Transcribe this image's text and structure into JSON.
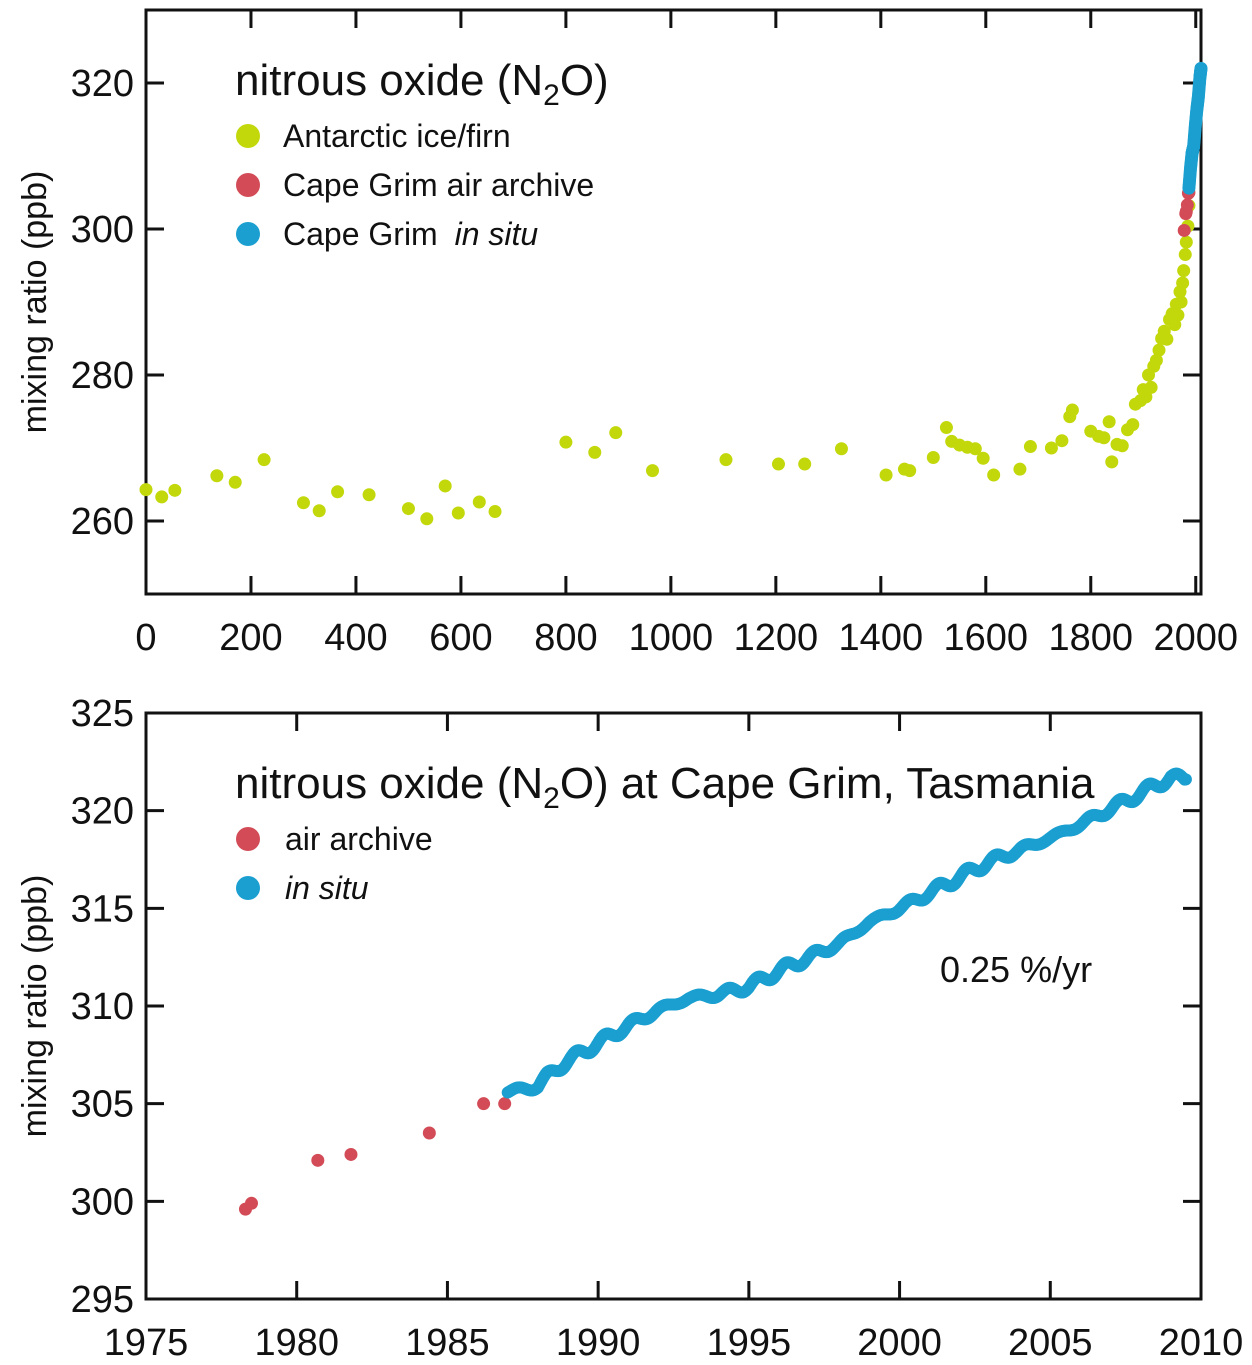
{
  "colors": {
    "ice": "#c2d80b",
    "archive": "#d24b57",
    "insitu": "#1a9fd0",
    "axis": "#111111"
  },
  "chart_data": [
    {
      "type": "scatter",
      "title": "nitrous oxide (N2O)",
      "title_main": "nitrous oxide (N",
      "title_sub": "2",
      "title_tail": "O)",
      "ylabel": "mixing ratio (ppb)",
      "xlim": [
        0,
        2010
      ],
      "ylim": [
        250,
        330
      ],
      "xticks": [
        0,
        200,
        400,
        600,
        800,
        1000,
        1200,
        1400,
        1600,
        1800,
        2000
      ],
      "yticks": [
        260,
        280,
        300,
        320
      ],
      "grid": false,
      "legend_position": "top-left",
      "series": [
        {
          "name": "Antarctic ice/firn",
          "color": "#c2d80b",
          "points": [
            [
              0,
              264.3
            ],
            [
              30,
              263.3
            ],
            [
              55,
              264.2
            ],
            [
              135,
              266.2
            ],
            [
              170,
              265.3
            ],
            [
              225,
              268.4
            ],
            [
              300,
              262.5
            ],
            [
              330,
              261.4
            ],
            [
              365,
              264.0
            ],
            [
              425,
              263.6
            ],
            [
              500,
              261.7
            ],
            [
              535,
              260.3
            ],
            [
              570,
              264.8
            ],
            [
              595,
              261.1
            ],
            [
              635,
              262.6
            ],
            [
              665,
              261.3
            ],
            [
              800,
              270.8
            ],
            [
              855,
              269.4
            ],
            [
              895,
              272.1
            ],
            [
              965,
              266.9
            ],
            [
              1105,
              268.4
            ],
            [
              1205,
              267.8
            ],
            [
              1255,
              267.8
            ],
            [
              1325,
              269.9
            ],
            [
              1410,
              266.3
            ],
            [
              1445,
              267.1
            ],
            [
              1455,
              266.9
            ],
            [
              1500,
              268.7
            ],
            [
              1525,
              272.8
            ],
            [
              1535,
              270.9
            ],
            [
              1550,
              270.4
            ],
            [
              1565,
              270.1
            ],
            [
              1580,
              269.9
            ],
            [
              1595,
              268.6
            ],
            [
              1615,
              266.3
            ],
            [
              1665,
              267.1
            ],
            [
              1685,
              270.2
            ],
            [
              1725,
              270.0
            ],
            [
              1745,
              271.0
            ],
            [
              1760,
              274.3
            ],
            [
              1765,
              275.2
            ],
            [
              1800,
              272.3
            ],
            [
              1815,
              271.6
            ],
            [
              1825,
              271.4
            ],
            [
              1835,
              273.6
            ],
            [
              1840,
              268.1
            ],
            [
              1850,
              270.5
            ],
            [
              1860,
              270.3
            ],
            [
              1870,
              272.5
            ],
            [
              1880,
              273.2
            ],
            [
              1885,
              276.0
            ],
            [
              1895,
              276.5
            ],
            [
              1900,
              278.0
            ],
            [
              1905,
              277.0
            ],
            [
              1910,
              280.0
            ],
            [
              1915,
              278.3
            ],
            [
              1920,
              281.2
            ],
            [
              1925,
              282.0
            ],
            [
              1930,
              283.4
            ],
            [
              1935,
              285.0
            ],
            [
              1940,
              286.0
            ],
            [
              1945,
              284.9
            ],
            [
              1950,
              287.6
            ],
            [
              1955,
              288.4
            ],
            [
              1960,
              286.9
            ],
            [
              1963,
              289.7
            ],
            [
              1966,
              288.2
            ],
            [
              1970,
              291.4
            ],
            [
              1972,
              290.0
            ],
            [
              1975,
              292.6
            ],
            [
              1977,
              294.3
            ],
            [
              1980,
              296.5
            ],
            [
              1982,
              298.2
            ],
            [
              1985,
              300.4
            ],
            [
              1987,
              303.2
            ]
          ]
        },
        {
          "name": "Cape Grim air archive",
          "color": "#d24b57",
          "points": [
            [
              1978,
              299.8
            ],
            [
              1981,
              302.1
            ],
            [
              1982,
              302.4
            ],
            [
              1984,
              303.3
            ],
            [
              1986,
              304.9
            ],
            [
              1987,
              305.0
            ]
          ]
        },
        {
          "name": "Cape Grim in situ",
          "color": "#1a9fd0",
          "points": [
            [
              1987,
              305.6
            ],
            [
              1990,
              308.3
            ],
            [
              1993,
              310.4
            ],
            [
              1996,
              311.3
            ],
            [
              1999,
              314.0
            ],
            [
              2002,
              316.3
            ],
            [
              2005,
              318.1
            ],
            [
              2008,
              320.8
            ],
            [
              2010,
              322.0
            ]
          ]
        }
      ],
      "legend": [
        {
          "label": "Antarctic ice/firn",
          "label_main": "Antarctic ice/firn",
          "label_italic": "",
          "color": "#c2d80b"
        },
        {
          "label": "Cape Grim air archive",
          "label_main": "Cape Grim air archive",
          "label_italic": "",
          "color": "#d24b57"
        },
        {
          "label": "Cape Grim in situ",
          "label_main": "Cape Grim ",
          "label_italic": "in situ",
          "color": "#1a9fd0"
        }
      ]
    },
    {
      "type": "scatter",
      "title": "nitrous oxide (N2O) at Cape Grim, Tasmania",
      "title_main": "nitrous oxide (N",
      "title_sub": "2",
      "title_tail": "O) at Cape Grim, Tasmania",
      "ylabel": "mixing ratio (ppb)",
      "xlim": [
        1975,
        2010
      ],
      "ylim": [
        295,
        325
      ],
      "xticks": [
        1975,
        1980,
        1985,
        1990,
        1995,
        2000,
        2005,
        2010
      ],
      "yticks": [
        295,
        300,
        305,
        310,
        315,
        320,
        325
      ],
      "grid": false,
      "legend_position": "top-left",
      "annotation": "0.25 %/yr",
      "series": [
        {
          "name": "air archive",
          "color": "#d24b57",
          "points": [
            [
              1978.3,
              299.6
            ],
            [
              1978.5,
              299.9
            ],
            [
              1980.7,
              302.1
            ],
            [
              1981.8,
              302.4
            ],
            [
              1984.4,
              303.5
            ],
            [
              1986.2,
              305.0
            ],
            [
              1986.9,
              305.0
            ]
          ]
        },
        {
          "name": "in situ",
          "color": "#1a9fd0",
          "anchors": [
            [
              1987.0,
              305.6
            ],
            [
              1988.0,
              305.9
            ],
            [
              1988.3,
              306.4
            ],
            [
              1989.0,
              307.2
            ],
            [
              1990.0,
              308.1
            ],
            [
              1991.0,
              309.0
            ],
            [
              1992.0,
              309.8
            ],
            [
              1993.0,
              310.4
            ],
            [
              1994.0,
              310.6
            ],
            [
              1995.0,
              311.0
            ],
            [
              1996.0,
              311.8
            ],
            [
              1997.0,
              312.5
            ],
            [
              1998.0,
              313.2
            ],
            [
              1999.0,
              314.3
            ],
            [
              2000.0,
              315.0
            ],
            [
              2001.0,
              315.8
            ],
            [
              2002.0,
              316.6
            ],
            [
              2003.0,
              317.4
            ],
            [
              2004.0,
              318.0
            ],
            [
              2005.0,
              318.6
            ],
            [
              2006.0,
              319.3
            ],
            [
              2007.0,
              320.1
            ],
            [
              2008.0,
              320.9
            ],
            [
              2009.0,
              321.7
            ],
            [
              2009.5,
              321.6
            ]
          ]
        }
      ],
      "legend": [
        {
          "label": "air archive",
          "label_main": "air archive",
          "label_italic": "",
          "color": "#d24b57"
        },
        {
          "label": "in situ",
          "label_main": "",
          "label_italic": "in situ",
          "color": "#1a9fd0"
        }
      ]
    }
  ]
}
